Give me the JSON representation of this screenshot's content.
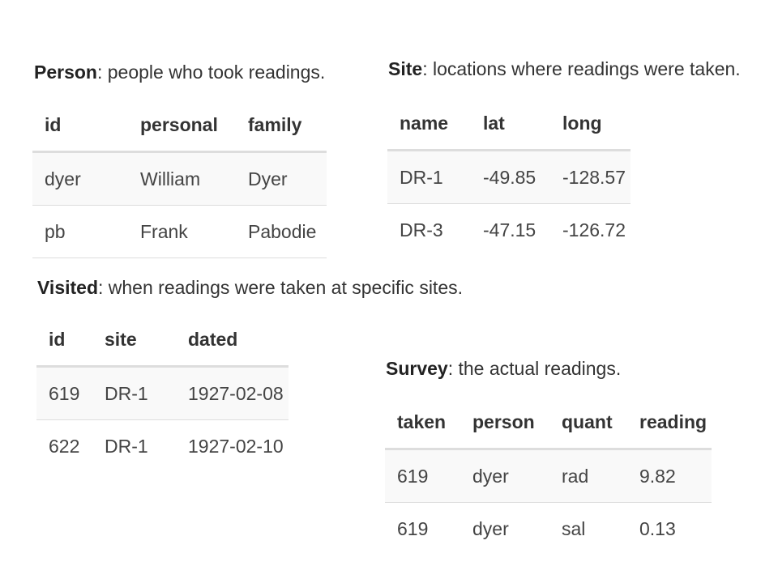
{
  "person": {
    "title": "Person",
    "description": ": people who took readings.",
    "columns": [
      "id",
      "personal",
      "family"
    ],
    "rows": [
      [
        "dyer",
        "William",
        "Dyer"
      ],
      [
        "pb",
        "Frank",
        "Pabodie"
      ]
    ]
  },
  "site": {
    "title": "Site",
    "description": ": locations where readings were taken.",
    "columns": [
      "name",
      "lat",
      "long"
    ],
    "rows": [
      [
        "DR-1",
        "-49.85",
        "-128.57"
      ],
      [
        "DR-3",
        "-47.15",
        "-126.72"
      ]
    ]
  },
  "visited": {
    "title": "Visited",
    "description": ": when readings were taken at specific sites.",
    "columns": [
      "id",
      "site",
      "dated"
    ],
    "rows": [
      [
        "619",
        "DR-1",
        "1927-02-08"
      ],
      [
        "622",
        "DR-1",
        "1927-02-10"
      ]
    ]
  },
  "survey": {
    "title": "Survey",
    "description": ": the actual readings.",
    "columns": [
      "taken",
      "person",
      "quant",
      "reading"
    ],
    "rows": [
      [
        "619",
        "dyer",
        "rad",
        "9.82"
      ],
      [
        "619",
        "dyer",
        "sal",
        "0.13"
      ]
    ]
  }
}
